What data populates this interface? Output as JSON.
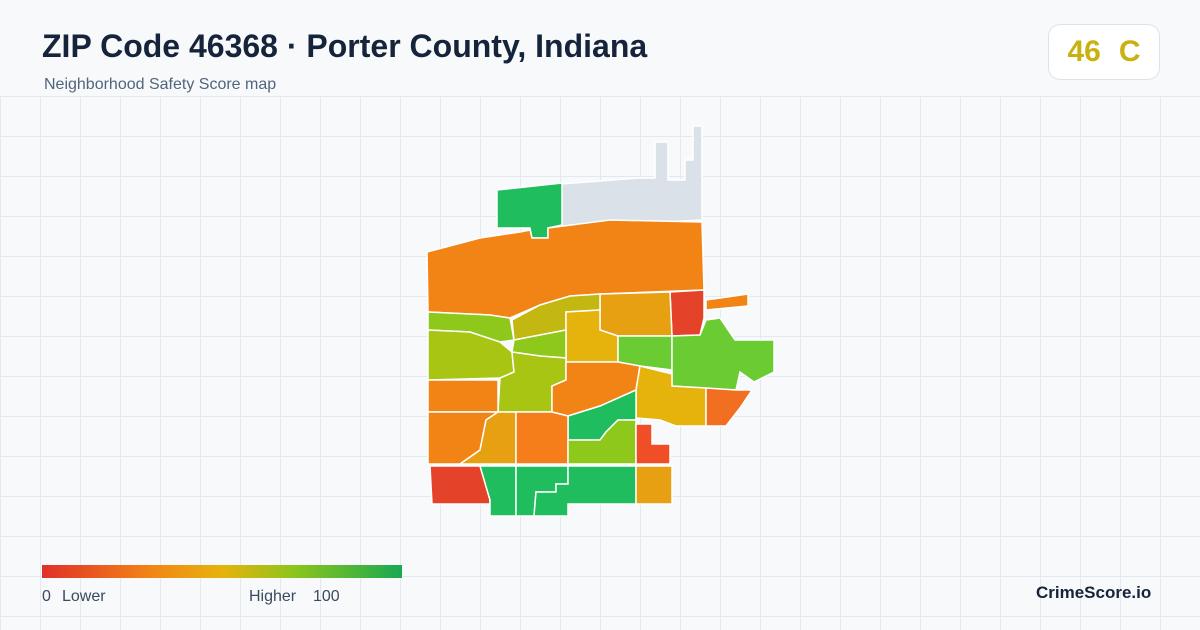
{
  "header": {
    "title": "ZIP Code 46368 · Porter County, Indiana",
    "subtitle": "Neighborhood Safety Score map"
  },
  "score": {
    "value": "46",
    "grade": "C"
  },
  "legend": {
    "min": "0",
    "min_label": "Lower",
    "max_label": "Higher",
    "max": "100"
  },
  "brand": "CrimeScore.io"
}
